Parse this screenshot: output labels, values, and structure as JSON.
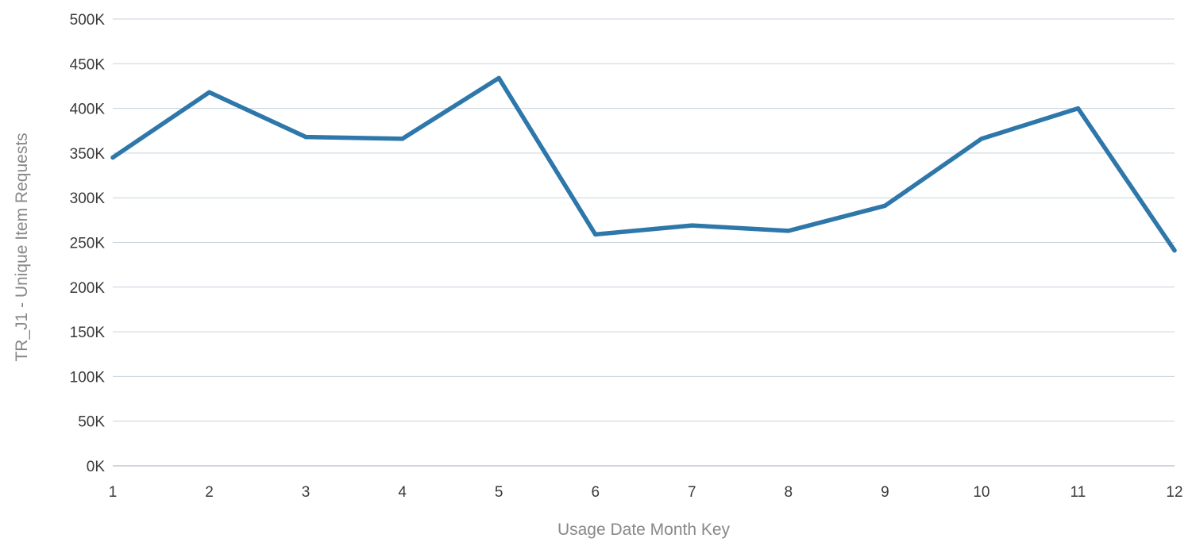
{
  "chart_data": {
    "type": "line",
    "title": "",
    "xlabel": "Usage Date Month Key",
    "ylabel": "TR_J1 - Unique Item Requests",
    "x": [
      1,
      2,
      3,
      4,
      5,
      6,
      7,
      8,
      9,
      10,
      11,
      12
    ],
    "x_tick_labels": [
      "1",
      "2",
      "3",
      "4",
      "5",
      "6",
      "7",
      "8",
      "9",
      "10",
      "11",
      "12"
    ],
    "y_ticks": [
      0,
      50000,
      100000,
      150000,
      200000,
      250000,
      300000,
      350000,
      400000,
      450000,
      500000
    ],
    "y_tick_labels": [
      "0K",
      "50K",
      "100K",
      "150K",
      "200K",
      "250K",
      "300K",
      "350K",
      "400K",
      "450K",
      "500K"
    ],
    "ylim": [
      0,
      500000
    ],
    "grid": true,
    "legend": "none",
    "series": [
      {
        "color": "#2e77aa",
        "values": [
          345000,
          418000,
          368000,
          366000,
          434000,
          259000,
          269000,
          263000,
          291000,
          366000,
          400000,
          241000
        ]
      }
    ]
  }
}
